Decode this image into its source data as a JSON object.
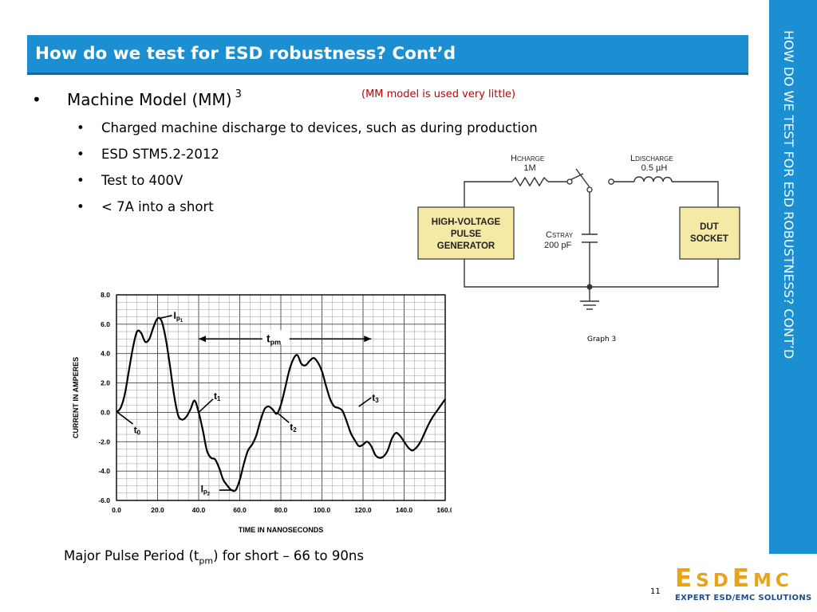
{
  "title": "How do we test for ESD robustness? Cont’d",
  "side_title": "HOW DO WE TEST FOR ESD ROBUSTNESS? CONT’D",
  "bullet_symbol": "•",
  "main_bullet": {
    "text": "Machine Model (MM)",
    "superscript": "3"
  },
  "note": "(MM model is used very little)",
  "sub_bullets": [
    "Charged machine discharge to devices, such as during production",
    "ESD STM5.2-2012",
    "Test to 400V",
    "< 7A into a short"
  ],
  "circuit": {
    "h_charge_label": "H",
    "h_charge_sub": "CHARGE",
    "h_charge_value": "1M",
    "l_discharge_label": "L",
    "l_discharge_sub": "DISCHARGE",
    "l_discharge_value": "0.5 µH",
    "c_stray_label": "C",
    "c_stray_sub": "STRAY",
    "c_stray_value": "200 pF",
    "generator_lines": [
      "HIGH-VOLTAGE",
      "PULSE",
      "GENERATOR"
    ],
    "dut_lines": [
      "DUT",
      "SOCKET"
    ],
    "box_fill": "#f5e9a6"
  },
  "graph_caption": "Graph 3",
  "chart_data": {
    "type": "line",
    "xlabel": "TIME IN NANOSECONDS",
    "ylabel": "CURRENT IN AMPERES",
    "xlim": [
      0,
      160
    ],
    "ylim": [
      -6,
      8
    ],
    "x_ticks": [
      "0.0",
      "20.0",
      "40.0",
      "60.0",
      "80.0",
      "100.0",
      "120.0",
      "140.0",
      "160.0"
    ],
    "y_ticks": [
      "8.0",
      "6.0",
      "4.0",
      "2.0",
      "0.0",
      "-2.0",
      "-4.0",
      "-6.0"
    ],
    "grid": true,
    "series": [
      {
        "x": [
          0,
          2,
          4,
          6,
          8,
          10,
          12,
          14,
          16,
          18,
          20,
          22,
          24,
          26,
          28,
          30,
          32,
          34,
          36,
          38,
          40,
          42,
          44,
          46,
          48,
          50,
          52,
          54,
          56,
          58,
          60,
          62,
          64,
          66,
          68,
          70,
          72,
          74,
          76,
          78,
          80,
          82,
          84,
          86,
          88,
          90,
          92,
          94,
          96,
          98,
          100,
          102,
          104,
          106,
          108,
          110,
          112,
          114,
          116,
          118,
          120,
          122,
          124,
          126,
          128,
          130,
          132,
          134,
          136,
          138,
          140,
          142,
          144,
          146,
          148,
          150,
          152,
          154,
          156,
          158,
          160
        ],
        "y": [
          0,
          0.3,
          1.2,
          2.8,
          4.4,
          5.5,
          5.4,
          4.8,
          5.0,
          5.8,
          6.4,
          6.2,
          5.0,
          3.2,
          1.2,
          -0.2,
          -0.5,
          -0.3,
          0.2,
          0.8,
          0.0,
          -1.2,
          -2.6,
          -3.1,
          -3.2,
          -3.8,
          -4.6,
          -5.0,
          -5.3,
          -5.3,
          -4.6,
          -3.5,
          -2.6,
          -2.2,
          -1.6,
          -0.6,
          0.2,
          0.4,
          0.2,
          -0.1,
          0.5,
          1.6,
          2.8,
          3.6,
          3.9,
          3.3,
          3.2,
          3.5,
          3.7,
          3.4,
          2.8,
          1.8,
          0.9,
          0.4,
          0.3,
          0.1,
          -0.6,
          -1.4,
          -1.9,
          -2.3,
          -2.2,
          -2.0,
          -2.3,
          -2.9,
          -3.1,
          -3.0,
          -2.6,
          -1.8,
          -1.4,
          -1.6,
          -2.0,
          -2.4,
          -2.6,
          -2.4,
          -2.0,
          -1.4,
          -0.8,
          -0.3,
          0.1,
          0.5,
          0.9
        ]
      }
    ],
    "annotations": {
      "ip1_main": "I",
      "ip1_sub": "p",
      "ip1_subsub": "1",
      "ip2_main": "I",
      "ip2_sub": "p",
      "ip2_subsub": "2",
      "t0": "t",
      "t0_sub": "0",
      "t1": "t",
      "t1_sub": "1",
      "t2": "t",
      "t2_sub": "2",
      "t3": "t",
      "t3_sub": "3",
      "tpm": "t",
      "tpm_sub": "pm"
    }
  },
  "footer": {
    "prefix": "Major Pulse Period (t",
    "sub": "pm",
    "suffix": ") for short – 66 to 90ns"
  },
  "page_number": "11",
  "logo": {
    "E1": "E",
    "s1": "SD",
    "E2": "E",
    "s2": "MC",
    "tagline": "EXPERT ESD/EMC SOLUTIONS",
    "color": "#e8a316",
    "tag_color": "#1f4e8c"
  },
  "accent_color": "#1b8fd2"
}
